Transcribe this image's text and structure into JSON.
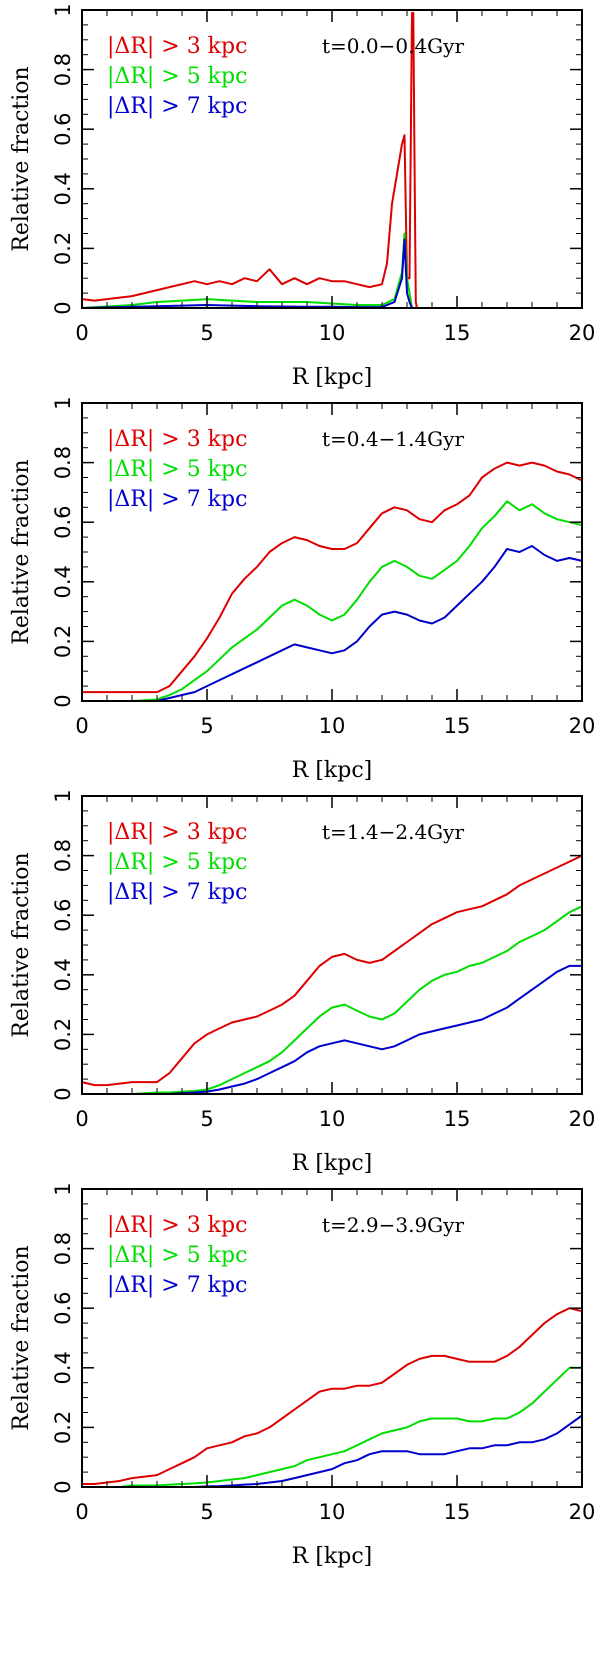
{
  "figure": {
    "colors": {
      "series1": "#dd0000",
      "series2": "#00dd00",
      "series3": "#0000cc",
      "axes": "#000000"
    }
  },
  "chart_data": [
    {
      "type": "line",
      "time_label": "t=0.0−0.4Gyr",
      "xlabel": "R [kpc]",
      "ylabel": "Relative fraction",
      "xlim": [
        0,
        20
      ],
      "ylim": [
        0,
        1
      ],
      "x_ticks": [
        "0",
        "5",
        "10",
        "15",
        "20"
      ],
      "y_ticks": [
        "0",
        "0.2",
        "0.4",
        "0.6",
        "0.8",
        "1"
      ],
      "grid": false,
      "legend_position": "top-left",
      "series": [
        {
          "name": "|ΔR| > 3 kpc",
          "color": "#dd0000",
          "x": [
            0,
            0.5,
            1,
            1.5,
            2,
            2.5,
            3,
            3.5,
            4,
            4.5,
            5,
            5.5,
            6,
            6.5,
            7,
            7.5,
            8,
            8.5,
            9,
            9.5,
            10,
            10.5,
            11,
            11.5,
            12,
            12.2,
            12.4,
            12.6,
            12.8,
            12.9,
            13.0,
            13.1,
            13.2,
            13.25,
            13.3,
            13.35,
            13.4,
            13.5,
            14,
            15,
            16,
            17,
            18,
            19,
            20
          ],
          "y": [
            0.03,
            0.025,
            0.03,
            0.035,
            0.04,
            0.05,
            0.06,
            0.07,
            0.08,
            0.09,
            0.08,
            0.09,
            0.08,
            0.1,
            0.09,
            0.13,
            0.08,
            0.1,
            0.08,
            0.1,
            0.09,
            0.09,
            0.08,
            0.07,
            0.08,
            0.15,
            0.35,
            0.45,
            0.55,
            0.58,
            0.1,
            0.1,
            0.99,
            0.99,
            0.5,
            0.02,
            0.0,
            0.0,
            0.0,
            0.0,
            0.0,
            0.0,
            0.0,
            0.0,
            0.0
          ]
        },
        {
          "name": "|ΔR| > 5 kpc",
          "color": "#00dd00",
          "x": [
            0,
            1,
            2,
            3,
            4,
            5,
            6,
            7,
            8,
            9,
            10,
            11,
            12,
            12.5,
            12.8,
            12.9,
            13.0,
            13.1,
            13.2,
            13.3,
            14,
            15,
            16,
            17,
            18,
            19,
            20
          ],
          "y": [
            0.0,
            0.005,
            0.01,
            0.02,
            0.025,
            0.03,
            0.025,
            0.02,
            0.02,
            0.02,
            0.015,
            0.01,
            0.01,
            0.03,
            0.12,
            0.25,
            0.1,
            0.05,
            0.0,
            0.0,
            0.0,
            0.0,
            0.0,
            0.0,
            0.0,
            0.0,
            0.0
          ]
        },
        {
          "name": "|ΔR| > 7 kpc",
          "color": "#0000cc",
          "x": [
            0,
            1,
            2,
            3,
            4,
            5,
            6,
            7,
            8,
            9,
            10,
            11,
            12,
            12.5,
            12.8,
            12.9,
            13.0,
            13.1,
            13.2,
            13.3,
            14,
            15,
            16,
            17,
            18,
            19,
            20
          ],
          "y": [
            0.0,
            0.002,
            0.004,
            0.006,
            0.008,
            0.01,
            0.008,
            0.006,
            0.005,
            0.004,
            0.004,
            0.003,
            0.003,
            0.02,
            0.1,
            0.23,
            0.05,
            0.02,
            0.0,
            0.0,
            0.0,
            0.0,
            0.0,
            0.0,
            0.0,
            0.0,
            0.0
          ]
        }
      ]
    },
    {
      "type": "line",
      "time_label": "t=0.4−1.4Gyr",
      "xlabel": "R [kpc]",
      "ylabel": "Relative fraction",
      "xlim": [
        0,
        20
      ],
      "ylim": [
        0,
        1
      ],
      "x_ticks": [
        "0",
        "5",
        "10",
        "15",
        "20"
      ],
      "y_ticks": [
        "0",
        "0.2",
        "0.4",
        "0.6",
        "0.8",
        "1"
      ],
      "grid": false,
      "legend_position": "top-left",
      "series": [
        {
          "name": "|ΔR| > 3 kpc",
          "color": "#dd0000",
          "x": [
            0,
            1,
            2,
            3,
            3.5,
            4,
            4.5,
            5,
            5.5,
            6,
            6.5,
            7,
            7.5,
            8,
            8.5,
            9,
            9.5,
            10,
            10.5,
            11,
            11.5,
            12,
            12.5,
            13,
            13.5,
            14,
            14.5,
            15,
            15.5,
            16,
            16.5,
            17,
            17.5,
            18,
            18.5,
            19,
            19.5,
            20
          ],
          "y": [
            0.03,
            0.03,
            0.03,
            0.03,
            0.05,
            0.1,
            0.15,
            0.21,
            0.28,
            0.36,
            0.41,
            0.45,
            0.5,
            0.53,
            0.55,
            0.54,
            0.52,
            0.51,
            0.51,
            0.53,
            0.58,
            0.63,
            0.65,
            0.64,
            0.61,
            0.6,
            0.64,
            0.66,
            0.69,
            0.75,
            0.78,
            0.8,
            0.79,
            0.8,
            0.79,
            0.77,
            0.76,
            0.74
          ]
        },
        {
          "name": "|ΔR| > 5 kpc",
          "color": "#00dd00",
          "x": [
            0,
            1,
            2,
            3,
            3.5,
            4,
            4.5,
            5,
            5.5,
            6,
            6.5,
            7,
            7.5,
            8,
            8.5,
            9,
            9.5,
            10,
            10.5,
            11,
            11.5,
            12,
            12.5,
            13,
            13.5,
            14,
            14.5,
            15,
            15.5,
            16,
            16.5,
            17,
            17.5,
            18,
            18.5,
            19,
            19.5,
            20
          ],
          "y": [
            0.0,
            0.0,
            0.0,
            0.005,
            0.02,
            0.04,
            0.07,
            0.1,
            0.14,
            0.18,
            0.21,
            0.24,
            0.28,
            0.32,
            0.34,
            0.32,
            0.29,
            0.27,
            0.29,
            0.34,
            0.4,
            0.45,
            0.47,
            0.45,
            0.42,
            0.41,
            0.44,
            0.47,
            0.52,
            0.58,
            0.62,
            0.67,
            0.64,
            0.66,
            0.63,
            0.61,
            0.6,
            0.59
          ]
        },
        {
          "name": "|ΔR| > 7 kpc",
          "color": "#0000cc",
          "x": [
            0,
            1,
            2,
            3,
            3.5,
            4,
            4.5,
            5,
            5.5,
            6,
            6.5,
            7,
            7.5,
            8,
            8.5,
            9,
            9.5,
            10,
            10.5,
            11,
            11.5,
            12,
            12.5,
            13,
            13.5,
            14,
            14.5,
            15,
            15.5,
            16,
            16.5,
            17,
            17.5,
            18,
            18.5,
            19,
            19.5,
            20
          ],
          "y": [
            0.0,
            0.0,
            0.0,
            0.0,
            0.01,
            0.02,
            0.03,
            0.05,
            0.07,
            0.09,
            0.11,
            0.13,
            0.15,
            0.17,
            0.19,
            0.18,
            0.17,
            0.16,
            0.17,
            0.2,
            0.25,
            0.29,
            0.3,
            0.29,
            0.27,
            0.26,
            0.28,
            0.32,
            0.36,
            0.4,
            0.45,
            0.51,
            0.5,
            0.52,
            0.49,
            0.47,
            0.48,
            0.47
          ]
        }
      ]
    },
    {
      "type": "line",
      "time_label": "t=1.4−2.4Gyr",
      "xlabel": "R [kpc]",
      "ylabel": "Relative fraction",
      "xlim": [
        0,
        20
      ],
      "ylim": [
        0,
        1
      ],
      "x_ticks": [
        "0",
        "5",
        "10",
        "15",
        "20"
      ],
      "y_ticks": [
        "0",
        "0.2",
        "0.4",
        "0.6",
        "0.8",
        "1"
      ],
      "grid": false,
      "legend_position": "top-left",
      "series": [
        {
          "name": "|ΔR| > 3 kpc",
          "color": "#dd0000",
          "x": [
            0,
            0.5,
            1,
            2,
            3,
            3.5,
            4,
            4.5,
            5,
            5.5,
            6,
            6.5,
            7,
            7.5,
            8,
            8.5,
            9,
            9.5,
            10,
            10.5,
            11,
            11.5,
            12,
            12.5,
            13,
            13.5,
            14,
            14.5,
            15,
            15.5,
            16,
            16.5,
            17,
            17.5,
            18,
            18.5,
            19,
            19.5,
            20
          ],
          "y": [
            0.04,
            0.03,
            0.03,
            0.04,
            0.04,
            0.07,
            0.12,
            0.17,
            0.2,
            0.22,
            0.24,
            0.25,
            0.26,
            0.28,
            0.3,
            0.33,
            0.38,
            0.43,
            0.46,
            0.47,
            0.45,
            0.44,
            0.45,
            0.48,
            0.51,
            0.54,
            0.57,
            0.59,
            0.61,
            0.62,
            0.63,
            0.65,
            0.67,
            0.7,
            0.72,
            0.74,
            0.76,
            0.78,
            0.8
          ]
        },
        {
          "name": "|ΔR| > 5 kpc",
          "color": "#00dd00",
          "x": [
            0,
            0.5,
            1,
            2,
            3,
            3.5,
            4,
            4.5,
            5,
            5.5,
            6,
            6.5,
            7,
            7.5,
            8,
            8.5,
            9,
            9.5,
            10,
            10.5,
            11,
            11.5,
            12,
            12.5,
            13,
            13.5,
            14,
            14.5,
            15,
            15.5,
            16,
            16.5,
            17,
            17.5,
            18,
            18.5,
            19,
            19.5,
            20
          ],
          "y": [
            0.0,
            0.0,
            0.0,
            0.0,
            0.005,
            0.005,
            0.008,
            0.01,
            0.015,
            0.03,
            0.05,
            0.07,
            0.09,
            0.11,
            0.14,
            0.18,
            0.22,
            0.26,
            0.29,
            0.3,
            0.28,
            0.26,
            0.25,
            0.27,
            0.31,
            0.35,
            0.38,
            0.4,
            0.41,
            0.43,
            0.44,
            0.46,
            0.48,
            0.51,
            0.53,
            0.55,
            0.58,
            0.61,
            0.63
          ]
        },
        {
          "name": "|ΔR| > 7 kpc",
          "color": "#0000cc",
          "x": [
            0,
            0.5,
            1,
            2,
            3,
            3.5,
            4,
            4.5,
            5,
            5.5,
            6,
            6.5,
            7,
            7.5,
            8,
            8.5,
            9,
            9.5,
            10,
            10.5,
            11,
            11.5,
            12,
            12.5,
            13,
            13.5,
            14,
            14.5,
            15,
            15.5,
            16,
            16.5,
            17,
            17.5,
            18,
            18.5,
            19,
            19.5,
            20
          ],
          "y": [
            0.0,
            0.0,
            0.0,
            0.0,
            0.0,
            0.0,
            0.003,
            0.005,
            0.008,
            0.015,
            0.025,
            0.035,
            0.05,
            0.07,
            0.09,
            0.11,
            0.14,
            0.16,
            0.17,
            0.18,
            0.17,
            0.16,
            0.15,
            0.16,
            0.18,
            0.2,
            0.21,
            0.22,
            0.23,
            0.24,
            0.25,
            0.27,
            0.29,
            0.32,
            0.35,
            0.38,
            0.41,
            0.43,
            0.43
          ]
        }
      ]
    },
    {
      "type": "line",
      "time_label": "t=2.9−3.9Gyr",
      "xlabel": "R [kpc]",
      "ylabel": "Relative fraction",
      "xlim": [
        0,
        20
      ],
      "ylim": [
        0,
        1
      ],
      "x_ticks": [
        "0",
        "5",
        "10",
        "15",
        "20"
      ],
      "y_ticks": [
        "0",
        "0.2",
        "0.4",
        "0.6",
        "0.8",
        "1"
      ],
      "grid": false,
      "legend_position": "top-left",
      "series": [
        {
          "name": "|ΔR| > 3 kpc",
          "color": "#dd0000",
          "x": [
            0,
            0.5,
            1,
            1.5,
            2,
            2.5,
            3,
            3.5,
            4,
            4.5,
            5,
            5.5,
            6,
            6.5,
            7,
            7.5,
            8,
            8.5,
            9,
            9.5,
            10,
            10.5,
            11,
            11.5,
            12,
            12.5,
            13,
            13.5,
            14,
            14.5,
            15,
            15.5,
            16,
            16.5,
            17,
            17.5,
            18,
            18.5,
            19,
            19.5,
            20
          ],
          "y": [
            0.01,
            0.01,
            0.015,
            0.02,
            0.03,
            0.035,
            0.04,
            0.06,
            0.08,
            0.1,
            0.13,
            0.14,
            0.15,
            0.17,
            0.18,
            0.2,
            0.23,
            0.26,
            0.29,
            0.32,
            0.33,
            0.33,
            0.34,
            0.34,
            0.35,
            0.38,
            0.41,
            0.43,
            0.44,
            0.44,
            0.43,
            0.42,
            0.42,
            0.42,
            0.44,
            0.47,
            0.51,
            0.55,
            0.58,
            0.6,
            0.59
          ]
        },
        {
          "name": "|ΔR| > 5 kpc",
          "color": "#00dd00",
          "x": [
            0,
            0.5,
            1,
            1.5,
            2,
            2.5,
            3,
            3.5,
            4,
            4.5,
            5,
            5.5,
            6,
            6.5,
            7,
            7.5,
            8,
            8.5,
            9,
            9.5,
            10,
            10.5,
            11,
            11.5,
            12,
            12.5,
            13,
            13.5,
            14,
            14.5,
            15,
            15.5,
            16,
            16.5,
            17,
            17.5,
            18,
            18.5,
            19,
            19.5,
            20
          ],
          "y": [
            0.0,
            0.0,
            0.0,
            0.0,
            0.005,
            0.005,
            0.005,
            0.008,
            0.01,
            0.012,
            0.015,
            0.02,
            0.025,
            0.03,
            0.04,
            0.05,
            0.06,
            0.07,
            0.09,
            0.1,
            0.11,
            0.12,
            0.14,
            0.16,
            0.18,
            0.19,
            0.2,
            0.22,
            0.23,
            0.23,
            0.23,
            0.22,
            0.22,
            0.23,
            0.23,
            0.25,
            0.28,
            0.32,
            0.36,
            0.4,
            0.4
          ]
        },
        {
          "name": "|ΔR| > 7 kpc",
          "color": "#0000cc",
          "x": [
            0,
            0.5,
            1,
            1.5,
            2,
            2.5,
            3,
            3.5,
            4,
            4.5,
            5,
            5.5,
            6,
            6.5,
            7,
            7.5,
            8,
            8.5,
            9,
            9.5,
            10,
            10.5,
            11,
            11.5,
            12,
            12.5,
            13,
            13.5,
            14,
            14.5,
            15,
            15.5,
            16,
            16.5,
            17,
            17.5,
            18,
            18.5,
            19,
            19.5,
            20
          ],
          "y": [
            0.0,
            0.0,
            0.0,
            0.0,
            0.0,
            0.0,
            0.0,
            0.0,
            0.0,
            0.0,
            0.002,
            0.003,
            0.005,
            0.008,
            0.01,
            0.015,
            0.02,
            0.03,
            0.04,
            0.05,
            0.06,
            0.08,
            0.09,
            0.11,
            0.12,
            0.12,
            0.12,
            0.11,
            0.11,
            0.11,
            0.12,
            0.13,
            0.13,
            0.14,
            0.14,
            0.15,
            0.15,
            0.16,
            0.18,
            0.21,
            0.24
          ]
        }
      ]
    }
  ]
}
